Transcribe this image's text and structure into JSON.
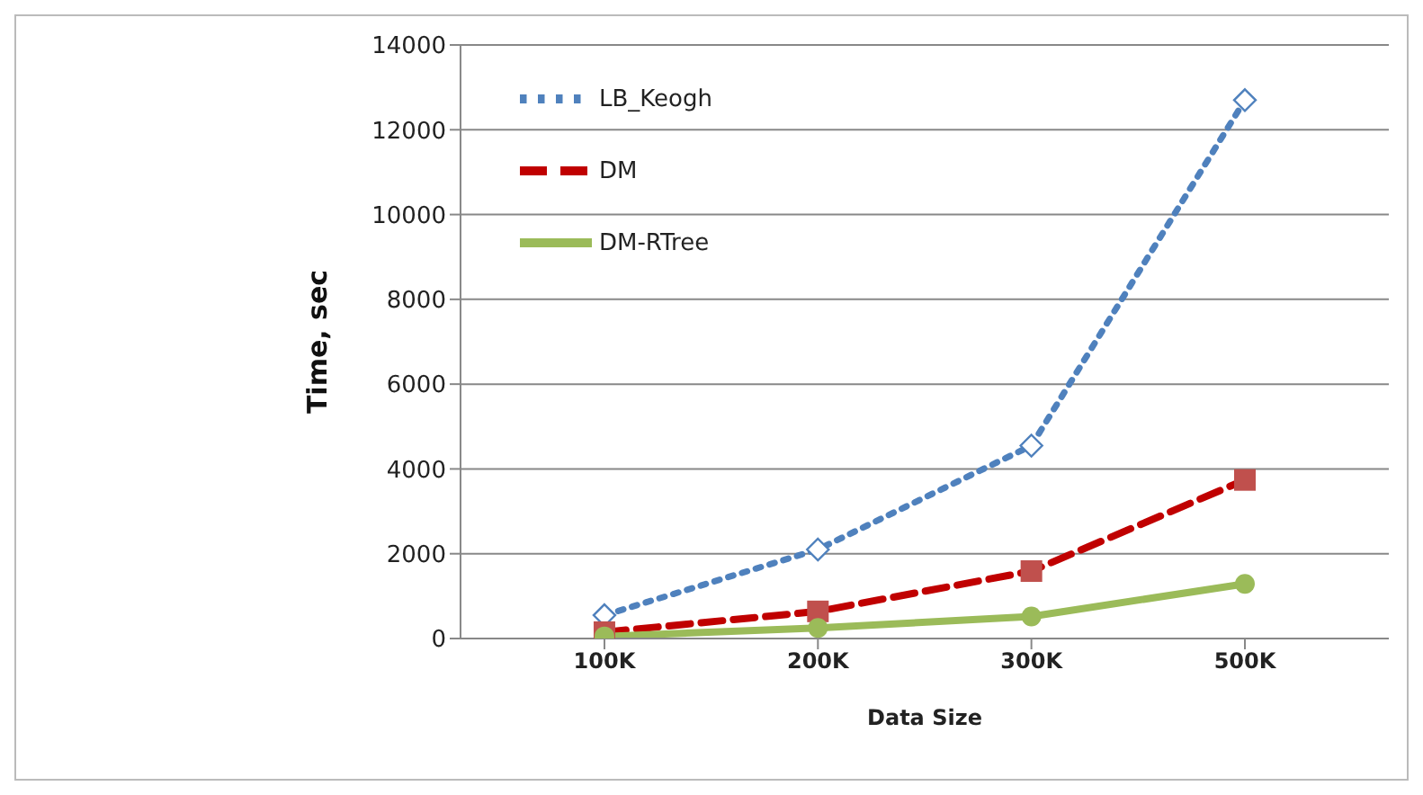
{
  "chart_data": {
    "type": "line",
    "xlabel": "Data Size",
    "ylabel": "Time, sec",
    "categories": [
      "100K",
      "200K",
      "300K",
      "500K"
    ],
    "series": [
      {
        "name": "LB_Keogh",
        "color": "#4f81bd",
        "values": [
          550,
          2100,
          4550,
          12700
        ],
        "marker": "diamond",
        "line_style": "dotted"
      },
      {
        "name": "DM",
        "color": "#c00000",
        "values": [
          150,
          640,
          1590,
          3740
        ],
        "marker": "square",
        "line_style": "dashed"
      },
      {
        "name": "DM-RTree",
        "color": "#9bbb59",
        "values": [
          50,
          250,
          520,
          1290
        ],
        "marker": "circle",
        "line_style": "solid"
      }
    ],
    "ylim": [
      0,
      14000
    ],
    "yticks": [
      0,
      2000,
      4000,
      6000,
      8000,
      10000,
      12000,
      14000
    ],
    "grid": "y",
    "legend": "top left"
  }
}
